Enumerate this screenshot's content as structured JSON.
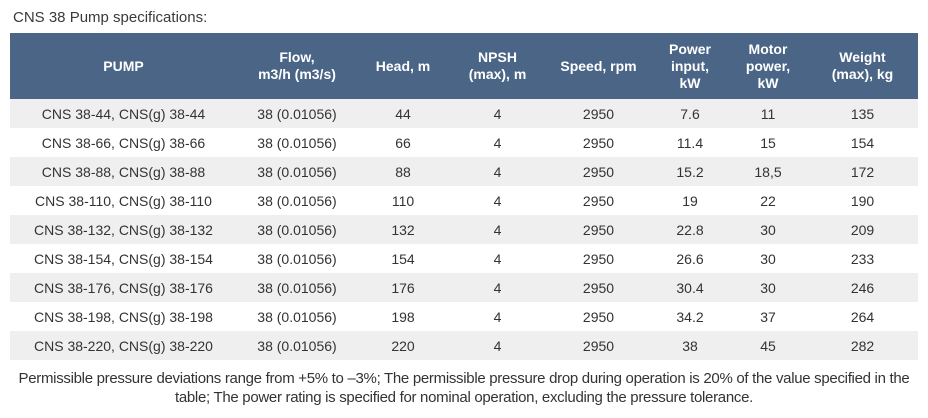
{
  "title": "CNS 38 Pump specifications:",
  "table": {
    "headers": [
      {
        "label": "PUMP"
      },
      {
        "label": "Flow,\nm3/h (m3/s)"
      },
      {
        "label": "Head, m"
      },
      {
        "label": "NPSH\n(max), m"
      },
      {
        "label": "Speed, rpm"
      },
      {
        "label": "Power\ninput,\nkW"
      },
      {
        "label": "Motor\npower,\nkW"
      },
      {
        "label": "Weight\n(max), kg"
      }
    ],
    "rows": [
      [
        "CNS 38-44, CNS(g) 38-44",
        "38 (0.01056)",
        "44",
        "4",
        "2950",
        "7.6",
        "11",
        "135"
      ],
      [
        "CNS 38-66, CNS(g) 38-66",
        "38 (0.01056)",
        "66",
        "4",
        "2950",
        "11.4",
        "15",
        "154"
      ],
      [
        "CNS 38-88, CNS(g) 38-88",
        "38 (0.01056)",
        "88",
        "4",
        "2950",
        "15.2",
        "18,5",
        "172"
      ],
      [
        "CNS 38-110, CNS(g) 38-110",
        "38 (0.01056)",
        "110",
        "4",
        "2950",
        "19",
        "22",
        "190"
      ],
      [
        "CNS 38-132, CNS(g) 38-132",
        "38 (0.01056)",
        "132",
        "4",
        "2950",
        "22.8",
        "30",
        "209"
      ],
      [
        "CNS 38-154, CNS(g) 38-154",
        "38 (0.01056)",
        "154",
        "4",
        "2950",
        "26.6",
        "30",
        "233"
      ],
      [
        "CNS 38-176, CNS(g) 38-176",
        "38 (0.01056)",
        "176",
        "4",
        "2950",
        "30.4",
        "30",
        "246"
      ],
      [
        "CNS 38-198, CNS(g) 38-198",
        "38 (0.01056)",
        "198",
        "4",
        "2950",
        "34.2",
        "37",
        "264"
      ],
      [
        "CNS 38-220, CNS(g) 38-220",
        "38 (0.01056)",
        "220",
        "4",
        "2950",
        "38",
        "45",
        "282"
      ]
    ]
  },
  "footnote": "Permissible pressure deviations range from +5% to –3%; The permissible pressure drop during operation is 20% of the value specified in the table; The power rating is specified for nominal operation, excluding the pressure tolerance.",
  "colors": {
    "header_bg": "#4a6586",
    "header_text": "#ffffff",
    "row_stripe": "#efefef",
    "body_text": "#333333"
  }
}
